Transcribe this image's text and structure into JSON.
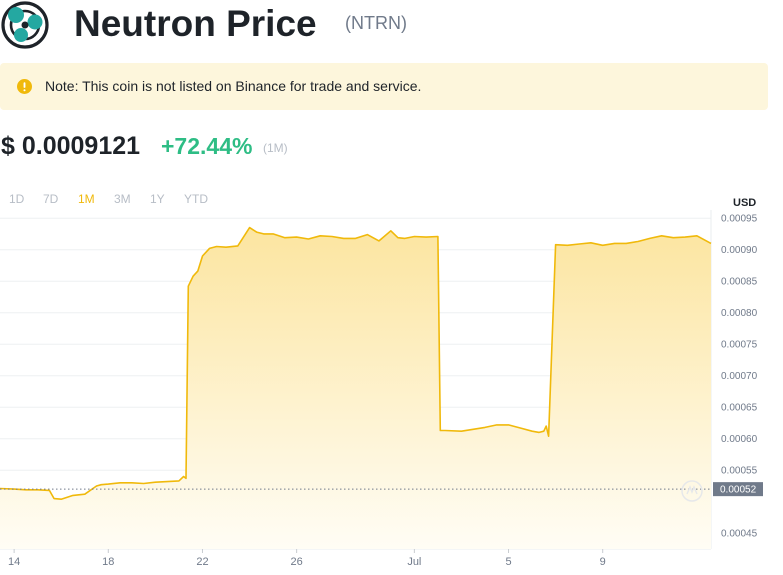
{
  "header": {
    "title": "Neutron Price",
    "ticker": "(NTRN)",
    "logo_icon": "neutron-logo"
  },
  "notice": {
    "icon": "exclamation-circle-icon",
    "text": "Note: This coin is not listed on Binance for trade and service."
  },
  "price": {
    "value": "$ 0.0009121",
    "change": "+72.44%",
    "period": "(1M)"
  },
  "ranges": [
    {
      "label": "1D",
      "active": false
    },
    {
      "label": "7D",
      "active": false
    },
    {
      "label": "1M",
      "active": true
    },
    {
      "label": "3M",
      "active": false
    },
    {
      "label": "1Y",
      "active": false
    },
    {
      "label": "YTD",
      "active": false
    }
  ],
  "colors": {
    "line": "#f0b90b",
    "fill_top": "#fce5a0",
    "fill_bottom": "#fffdf5",
    "positive": "#2ebd85",
    "label_bg": "#707a8a"
  },
  "chart_data": {
    "type": "area",
    "ylabel": "USD",
    "ylim": [
      0.000425,
      0.000963
    ],
    "y_ticks": [
      "0.00095",
      "0.00090",
      "0.00085",
      "0.00080",
      "0.00075",
      "0.00070",
      "0.00065",
      "0.00060",
      "0.00055",
      "0.00045"
    ],
    "y_tick_values": [
      0.00095,
      0.0009,
      0.00085,
      0.0008,
      0.00075,
      0.0007,
      0.00065,
      0.0006,
      0.00055,
      0.00045
    ],
    "x_ticks": [
      "14",
      "18",
      "22",
      "26",
      "Jul",
      "5",
      "9"
    ],
    "x_tick_days": [
      0,
      4,
      8,
      12,
      17,
      21,
      25
    ],
    "x_range_days": [
      -0.6,
      29.6
    ],
    "reference_line": {
      "value": 0.00052,
      "label": "0.00052"
    },
    "grid": true,
    "watermark": "binance-watermark-icon",
    "series": [
      {
        "x_days": [
          -0.6,
          0.0,
          0.5,
          1.0,
          1.5,
          1.7,
          2.0,
          2.5,
          3.0,
          3.5,
          3.7,
          4.0,
          4.5,
          5.0,
          5.5,
          6.0,
          6.5,
          7.0,
          7.2,
          7.3,
          7.4,
          7.6,
          7.8,
          8.0,
          8.3,
          8.6,
          9.0,
          9.5,
          10.0,
          10.3,
          10.6,
          11.0,
          11.5,
          12.0,
          12.5,
          13.0,
          13.5,
          14.0,
          14.5,
          15.0,
          15.5,
          16.0,
          16.3,
          16.6,
          17.0,
          17.5,
          18.0,
          18.1,
          18.3,
          19.0,
          19.5,
          20.0,
          20.5,
          21.0,
          21.5,
          22.0,
          22.3,
          22.5,
          22.6,
          22.7,
          23.0,
          23.5,
          24.0,
          24.5,
          25.0,
          25.5,
          26.0,
          26.5,
          27.0,
          27.5,
          28.0,
          28.5,
          29.0,
          29.6
        ],
        "values": [
          0.000521,
          0.00052,
          0.000519,
          0.000519,
          0.000518,
          0.000505,
          0.000504,
          0.00051,
          0.000512,
          0.000525,
          0.000527,
          0.000528,
          0.00053,
          0.00053,
          0.000529,
          0.000531,
          0.000532,
          0.000533,
          0.00054,
          0.000537,
          0.000842,
          0.000858,
          0.000866,
          0.00089,
          0.000902,
          0.000905,
          0.000904,
          0.000906,
          0.000935,
          0.000928,
          0.000925,
          0.000925,
          0.000919,
          0.00092,
          0.000917,
          0.000922,
          0.000921,
          0.000918,
          0.000918,
          0.000924,
          0.000914,
          0.00093,
          0.000919,
          0.000918,
          0.000921,
          0.00092,
          0.000921,
          0.000613,
          0.000613,
          0.000612,
          0.000615,
          0.000618,
          0.000622,
          0.000622,
          0.000617,
          0.000612,
          0.00061,
          0.000612,
          0.00062,
          0.000604,
          0.000908,
          0.000907,
          0.000909,
          0.000911,
          0.000907,
          0.00091,
          0.00091,
          0.000913,
          0.000918,
          0.000922,
          0.000919,
          0.00092,
          0.000922,
          0.00091
        ]
      }
    ]
  }
}
